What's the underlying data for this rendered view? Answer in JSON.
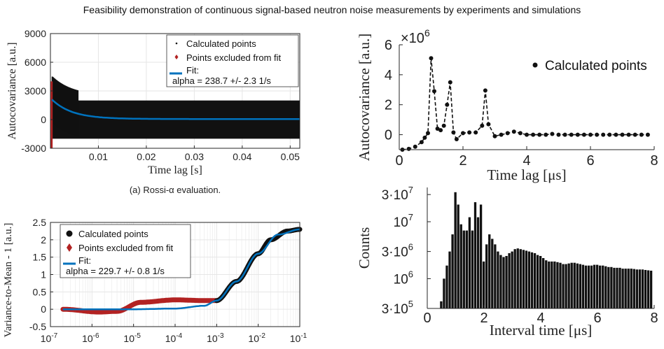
{
  "page_title": "Feasibility demonstration of continuous signal-based neutron noise measurements by experiments and simulations",
  "colors": {
    "points": "#111111",
    "excluded": "#b22222",
    "fit": "#0072bd",
    "grid": "#e6e6e6",
    "axis": "#262626"
  },
  "chart_data": [
    {
      "id": "rossi",
      "type": "scatter",
      "caption": "(a) Rossi-α evaluation.",
      "xlabel": "Time lag [s]",
      "ylabel": "Autocovariance [a.u.]",
      "xlim": [
        0,
        0.052
      ],
      "ylim": [
        -3000,
        9000
      ],
      "xticks": [
        0.01,
        0.02,
        0.03,
        0.04,
        0.05
      ],
      "xtick_labels": [
        "0.01",
        "0.02",
        "0.03",
        "0.04",
        "0.05"
      ],
      "yticks": [
        -3000,
        0,
        3000,
        6000,
        9000
      ],
      "ytick_labels": [
        "-3000",
        "0",
        "3000",
        "6000",
        "9000"
      ],
      "grid": true,
      "legend": {
        "position": "top-right",
        "entries": [
          "Calculated points",
          "Points excluded from fit",
          "Fit:",
          "alpha = 238.7 +/- 2.3 1/s"
        ]
      },
      "noise_band": {
        "x": [
          0.0004,
          0.052
        ],
        "y": [
          -2000,
          2000
        ]
      },
      "excluded_points": {
        "x": [
          2e-05,
          0.0003
        ],
        "y": [
          -3000,
          4000
        ]
      },
      "fit": {
        "alpha": 238.7,
        "alpha_err": 2.3,
        "amplitude": 2200,
        "offset": 60
      }
    },
    {
      "id": "vtm",
      "type": "scatter",
      "xlabel": "",
      "ylabel": "Variance-to-Mean - 1 [a.u.]",
      "xscale": "log",
      "xlim": [
        1e-07,
        0.1
      ],
      "ylim": [
        -0.5,
        2.5
      ],
      "xticks": [
        1e-07,
        1e-06,
        1e-05,
        0.0001,
        0.001,
        0.01,
        0.1
      ],
      "xtick_labels": [
        [
          "10",
          "-7"
        ],
        [
          "10",
          "-6"
        ],
        [
          "10",
          "-5"
        ],
        [
          "10",
          "-4"
        ],
        [
          "10",
          "-3"
        ],
        [
          "10",
          "-2"
        ],
        [
          "10",
          "-1"
        ]
      ],
      "yticks": [
        -0.5,
        0,
        0.5,
        1,
        1.5,
        2,
        2.5
      ],
      "ytick_labels": [
        "-0.5",
        "0",
        "0.5",
        "1",
        "1.5",
        "2",
        "2.5"
      ],
      "grid": true,
      "legend": {
        "position": "top-left",
        "entries": [
          "Calculated points",
          "Points excluded from fit",
          "Fit:",
          "alpha = 229.7 +/- 0.8 1/s"
        ]
      },
      "excluded_points": {
        "x": [
          2e-07,
          1.5e-06,
          4e-06,
          1.5e-05,
          0.0001,
          0.0005,
          0.001
        ],
        "y": [
          0.0,
          -0.08,
          -0.06,
          0.2,
          0.27,
          0.25,
          0.25
        ]
      },
      "calculated_points": {
        "x": [
          0.001,
          0.003,
          0.01,
          0.02,
          0.05,
          0.1
        ],
        "y": [
          0.25,
          0.8,
          1.6,
          2.0,
          2.25,
          2.3
        ]
      },
      "fit": {
        "alpha": 229.7,
        "alpha_err": 0.8,
        "x": [
          2e-07,
          1e-05,
          0.0001,
          0.0005,
          0.001,
          0.003,
          0.01,
          0.03,
          0.1
        ],
        "y": [
          0.0,
          0.0,
          0.02,
          0.1,
          0.25,
          0.8,
          1.6,
          2.15,
          2.3
        ]
      }
    },
    {
      "id": "autocov_us",
      "type": "line",
      "xlabel": "Time lag [μs]",
      "ylabel": "Autocovariance [a.u.]",
      "ymultiplier": [
        "×10",
        "6"
      ],
      "xlim": [
        0,
        8
      ],
      "ylim": [
        -1000000.0,
        6000000.0
      ],
      "xticks": [
        0,
        2,
        4,
        6,
        8
      ],
      "xtick_labels": [
        "0",
        "2",
        "4",
        "6",
        "8"
      ],
      "yticks": [
        0,
        2000000.0,
        4000000.0,
        6000000.0
      ],
      "ytick_labels": [
        "0",
        "2",
        "4",
        "6"
      ],
      "grid": false,
      "legend": {
        "position": "top-right",
        "entries": [
          "Calculated points"
        ]
      },
      "x": [
        0.1,
        0.3,
        0.5,
        0.7,
        0.8,
        0.9,
        1.0,
        1.1,
        1.2,
        1.3,
        1.4,
        1.5,
        1.6,
        1.7,
        1.8,
        2.0,
        2.2,
        2.4,
        2.6,
        2.7,
        2.8,
        3.0,
        3.2,
        3.4,
        3.6,
        3.8,
        4.0,
        4.2,
        4.4,
        4.6,
        4.8,
        5.0,
        5.2,
        5.4,
        5.6,
        5.8,
        6.0,
        6.2,
        6.4,
        6.6,
        6.8,
        7.0,
        7.2,
        7.4,
        7.6,
        7.8
      ],
      "y": [
        -1000000,
        -950000,
        -800000,
        -500000,
        -200000,
        100000,
        5100000,
        2900000,
        400000,
        300000,
        600000,
        2000000,
        3500000,
        150000,
        -300000,
        100000,
        150000,
        150000,
        600000,
        2950000,
        700000,
        -100000,
        0,
        100000,
        200000,
        100000,
        0,
        0,
        0,
        0,
        50000,
        0,
        0,
        0,
        0,
        0,
        0,
        0,
        0,
        0,
        0,
        0,
        0,
        0,
        0,
        0
      ]
    },
    {
      "id": "interval_hist",
      "type": "bar",
      "xlabel": "Interval time [μs]",
      "ylabel": "Counts",
      "yscale": "log",
      "xlim": [
        0,
        8
      ],
      "ylim": [
        300000.0,
        40000000.0
      ],
      "xticks": [
        0,
        2,
        4,
        6,
        8
      ],
      "xtick_labels": [
        "0",
        "2",
        "4",
        "6",
        "8"
      ],
      "yticks": [
        300000.0,
        1000000.0,
        3000000.0,
        10000000.0,
        30000000.0
      ],
      "ytick_labels": [
        [
          "3·10",
          "5"
        ],
        [
          "10",
          "6"
        ],
        [
          "3·10",
          "6"
        ],
        [
          "10",
          "7"
        ],
        [
          "3·10",
          "7"
        ]
      ],
      "grid": false,
      "bin_width": 0.1,
      "x": [
        0.5,
        0.6,
        0.7,
        0.8,
        0.9,
        1.0,
        1.1,
        1.2,
        1.3,
        1.4,
        1.5,
        1.6,
        1.7,
        1.8,
        1.9,
        2.0,
        2.1,
        2.2,
        2.3,
        2.4,
        2.5,
        2.6,
        2.7,
        2.8,
        2.9,
        3.0,
        3.1,
        3.2,
        3.3,
        3.4,
        3.5,
        3.6,
        3.7,
        3.8,
        3.9,
        4.0,
        4.1,
        4.2,
        4.3,
        4.4,
        4.5,
        4.6,
        4.7,
        4.8,
        4.9,
        5.0,
        5.1,
        5.2,
        5.3,
        5.4,
        5.5,
        5.6,
        5.7,
        5.8,
        5.9,
        6.0,
        6.1,
        6.2,
        6.3,
        6.4,
        6.5,
        6.6,
        6.7,
        6.8,
        6.9,
        7.0,
        7.1,
        7.2,
        7.3,
        7.4,
        7.5,
        7.6,
        7.7,
        7.8,
        7.9
      ],
      "y": [
        400000,
        1000000,
        1700000,
        3000000,
        6000000,
        33000000,
        20000000,
        9000000,
        7000000,
        7000000,
        12000000,
        7000000,
        22000000,
        12000000,
        20000000,
        2000000,
        4000000,
        6000000,
        5000000,
        4000000,
        3000000,
        2600000,
        2400000,
        2500000,
        2800000,
        3000000,
        3300000,
        3400000,
        3300000,
        3200000,
        3100000,
        3000000,
        2900000,
        2800000,
        2600000,
        2500000,
        2300000,
        2100000,
        2000000,
        2000000,
        2000000,
        1950000,
        1900000,
        1800000,
        1800000,
        1850000,
        1900000,
        1900000,
        1850000,
        1800000,
        1750000,
        1700000,
        1700000,
        1700000,
        1750000,
        1750000,
        1700000,
        1700000,
        1650000,
        1600000,
        1600000,
        1550000,
        1550000,
        1550000,
        1500000,
        1500000,
        1500000,
        1500000,
        1480000,
        1450000,
        1450000,
        1450000,
        1420000,
        1400000,
        1380000
      ]
    }
  ]
}
